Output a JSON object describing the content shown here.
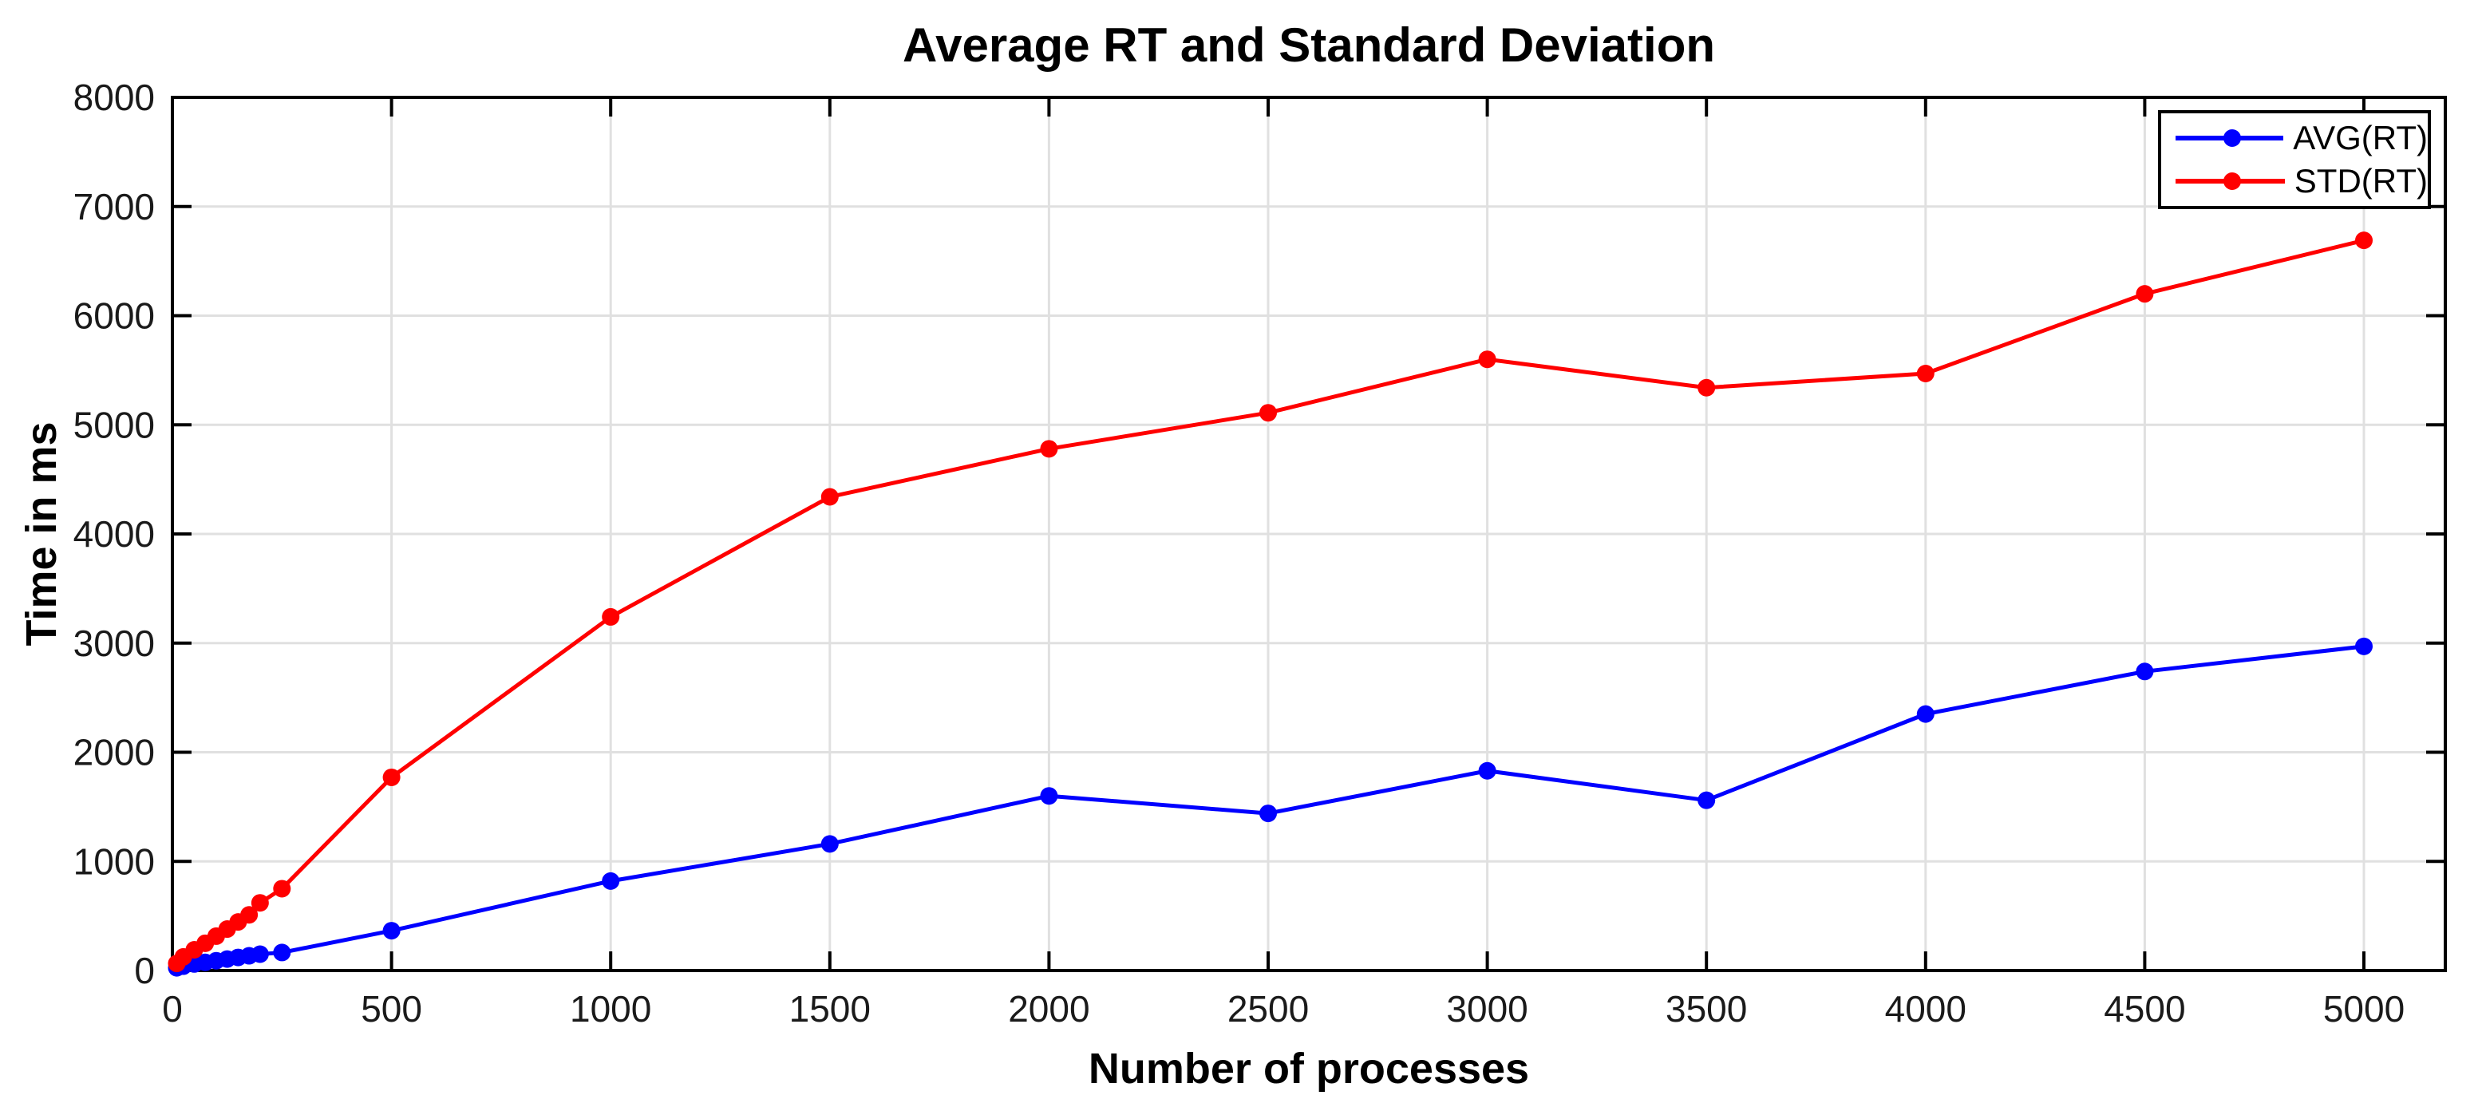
{
  "title": "Average RT and Standard Deviation",
  "legend": {
    "position": "top-right",
    "items": [
      {
        "label": "AVG(RT)",
        "color": "#0000ff"
      },
      {
        "label": "STD(RT)",
        "color": "#ff0000"
      }
    ]
  },
  "colors": {
    "axis": "#000000",
    "grid": "#e0e0e0",
    "tick_label": "#1a1a1a",
    "background": "#ffffff",
    "avg_series": "#0000ff",
    "std_series": "#ff0000"
  },
  "chart_data": {
    "type": "line",
    "title": "Average RT and Standard Deviation",
    "xlabel": "Number of processes",
    "ylabel": "Time in ms",
    "xlim": [
      0,
      5190
    ],
    "ylim": [
      0,
      8000
    ],
    "xticks": [
      0,
      500,
      1000,
      1500,
      2000,
      2500,
      3000,
      3500,
      4000,
      4500,
      5000
    ],
    "yticks": [
      0,
      1000,
      2000,
      3000,
      4000,
      5000,
      6000,
      7000,
      8000
    ],
    "grid": true,
    "legend_position": "top-right",
    "marker": "circle",
    "x": [
      10,
      25,
      50,
      75,
      100,
      125,
      150,
      175,
      200,
      250,
      500,
      1000,
      1500,
      2000,
      2500,
      3000,
      3500,
      4000,
      4500,
      5000
    ],
    "series": [
      {
        "name": "AVG(RT)",
        "color": "#0000ff",
        "values": [
          25,
          40,
          60,
          75,
          90,
          105,
          120,
          135,
          150,
          165,
          365,
          820,
          1160,
          1600,
          1440,
          1830,
          1560,
          2350,
          2740,
          2970
        ]
      },
      {
        "name": "STD(RT)",
        "color": "#ff0000",
        "values": [
          65,
          125,
          190,
          250,
          315,
          380,
          445,
          510,
          620,
          750,
          1770,
          3240,
          4340,
          4780,
          5110,
          5600,
          5340,
          5470,
          6200,
          6690
        ]
      }
    ]
  }
}
